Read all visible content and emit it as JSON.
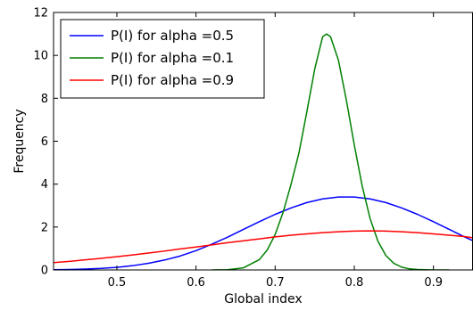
{
  "chart_data": {
    "type": "line",
    "title": "",
    "xlabel": "Global index",
    "ylabel": "Frequency",
    "xlim": [
      0.42,
      0.95
    ],
    "ylim": [
      0,
      12
    ],
    "xticks": [
      0.5,
      0.6,
      0.7,
      0.8,
      0.9
    ],
    "xtick_labels": [
      "0.5",
      "0.6",
      "0.7",
      "0.8",
      "0.9"
    ],
    "yticks": [
      0,
      2,
      4,
      6,
      8,
      10,
      12
    ],
    "ytick_labels": [
      "0",
      "2",
      "4",
      "6",
      "8",
      "10",
      "12"
    ],
    "grid": false,
    "legend_position": "top-left",
    "series": [
      {
        "name": "P(I) for alpha =0.5",
        "color": "#0000ff",
        "x": [
          0.42,
          0.44,
          0.46,
          0.48,
          0.5,
          0.52,
          0.54,
          0.56,
          0.58,
          0.6,
          0.62,
          0.64,
          0.66,
          0.68,
          0.7,
          0.72,
          0.74,
          0.76,
          0.78,
          0.8,
          0.82,
          0.84,
          0.86,
          0.88,
          0.9,
          0.92,
          0.94,
          0.95
        ],
        "y": [
          0.01,
          0.02,
          0.04,
          0.07,
          0.12,
          0.2,
          0.31,
          0.46,
          0.65,
          0.9,
          1.2,
          1.53,
          1.89,
          2.25,
          2.59,
          2.89,
          3.14,
          3.31,
          3.4,
          3.4,
          3.31,
          3.14,
          2.89,
          2.59,
          2.25,
          1.89,
          1.53,
          1.36
        ]
      },
      {
        "name": "P(I) for alpha =0.1",
        "color": "#008000",
        "x": [
          0.62,
          0.64,
          0.66,
          0.68,
          0.69,
          0.7,
          0.71,
          0.72,
          0.73,
          0.74,
          0.75,
          0.76,
          0.765,
          0.77,
          0.78,
          0.79,
          0.8,
          0.81,
          0.82,
          0.83,
          0.84,
          0.85,
          0.86,
          0.87,
          0.88,
          0.9,
          0.92
        ],
        "y": [
          0.0,
          0.01,
          0.1,
          0.48,
          0.93,
          1.65,
          2.68,
          3.98,
          5.44,
          7.36,
          9.36,
          10.87,
          11.0,
          10.87,
          9.77,
          7.91,
          5.83,
          3.91,
          2.39,
          1.33,
          0.67,
          0.31,
          0.13,
          0.05,
          0.02,
          0.0,
          0.0
        ]
      },
      {
        "name": "P(I) for alpha =0.9",
        "color": "#ff0000",
        "x": [
          0.42,
          0.44,
          0.46,
          0.48,
          0.5,
          0.52,
          0.54,
          0.56,
          0.58,
          0.6,
          0.62,
          0.64,
          0.66,
          0.68,
          0.7,
          0.72,
          0.74,
          0.76,
          0.78,
          0.8,
          0.82,
          0.84,
          0.86,
          0.88,
          0.9,
          0.92,
          0.94,
          0.95
        ],
        "y": [
          0.34,
          0.4,
          0.47,
          0.54,
          0.62,
          0.7,
          0.79,
          0.88,
          0.98,
          1.07,
          1.17,
          1.27,
          1.36,
          1.45,
          1.54,
          1.62,
          1.68,
          1.74,
          1.78,
          1.81,
          1.82,
          1.81,
          1.78,
          1.74,
          1.68,
          1.62,
          1.55,
          1.5
        ]
      }
    ]
  }
}
